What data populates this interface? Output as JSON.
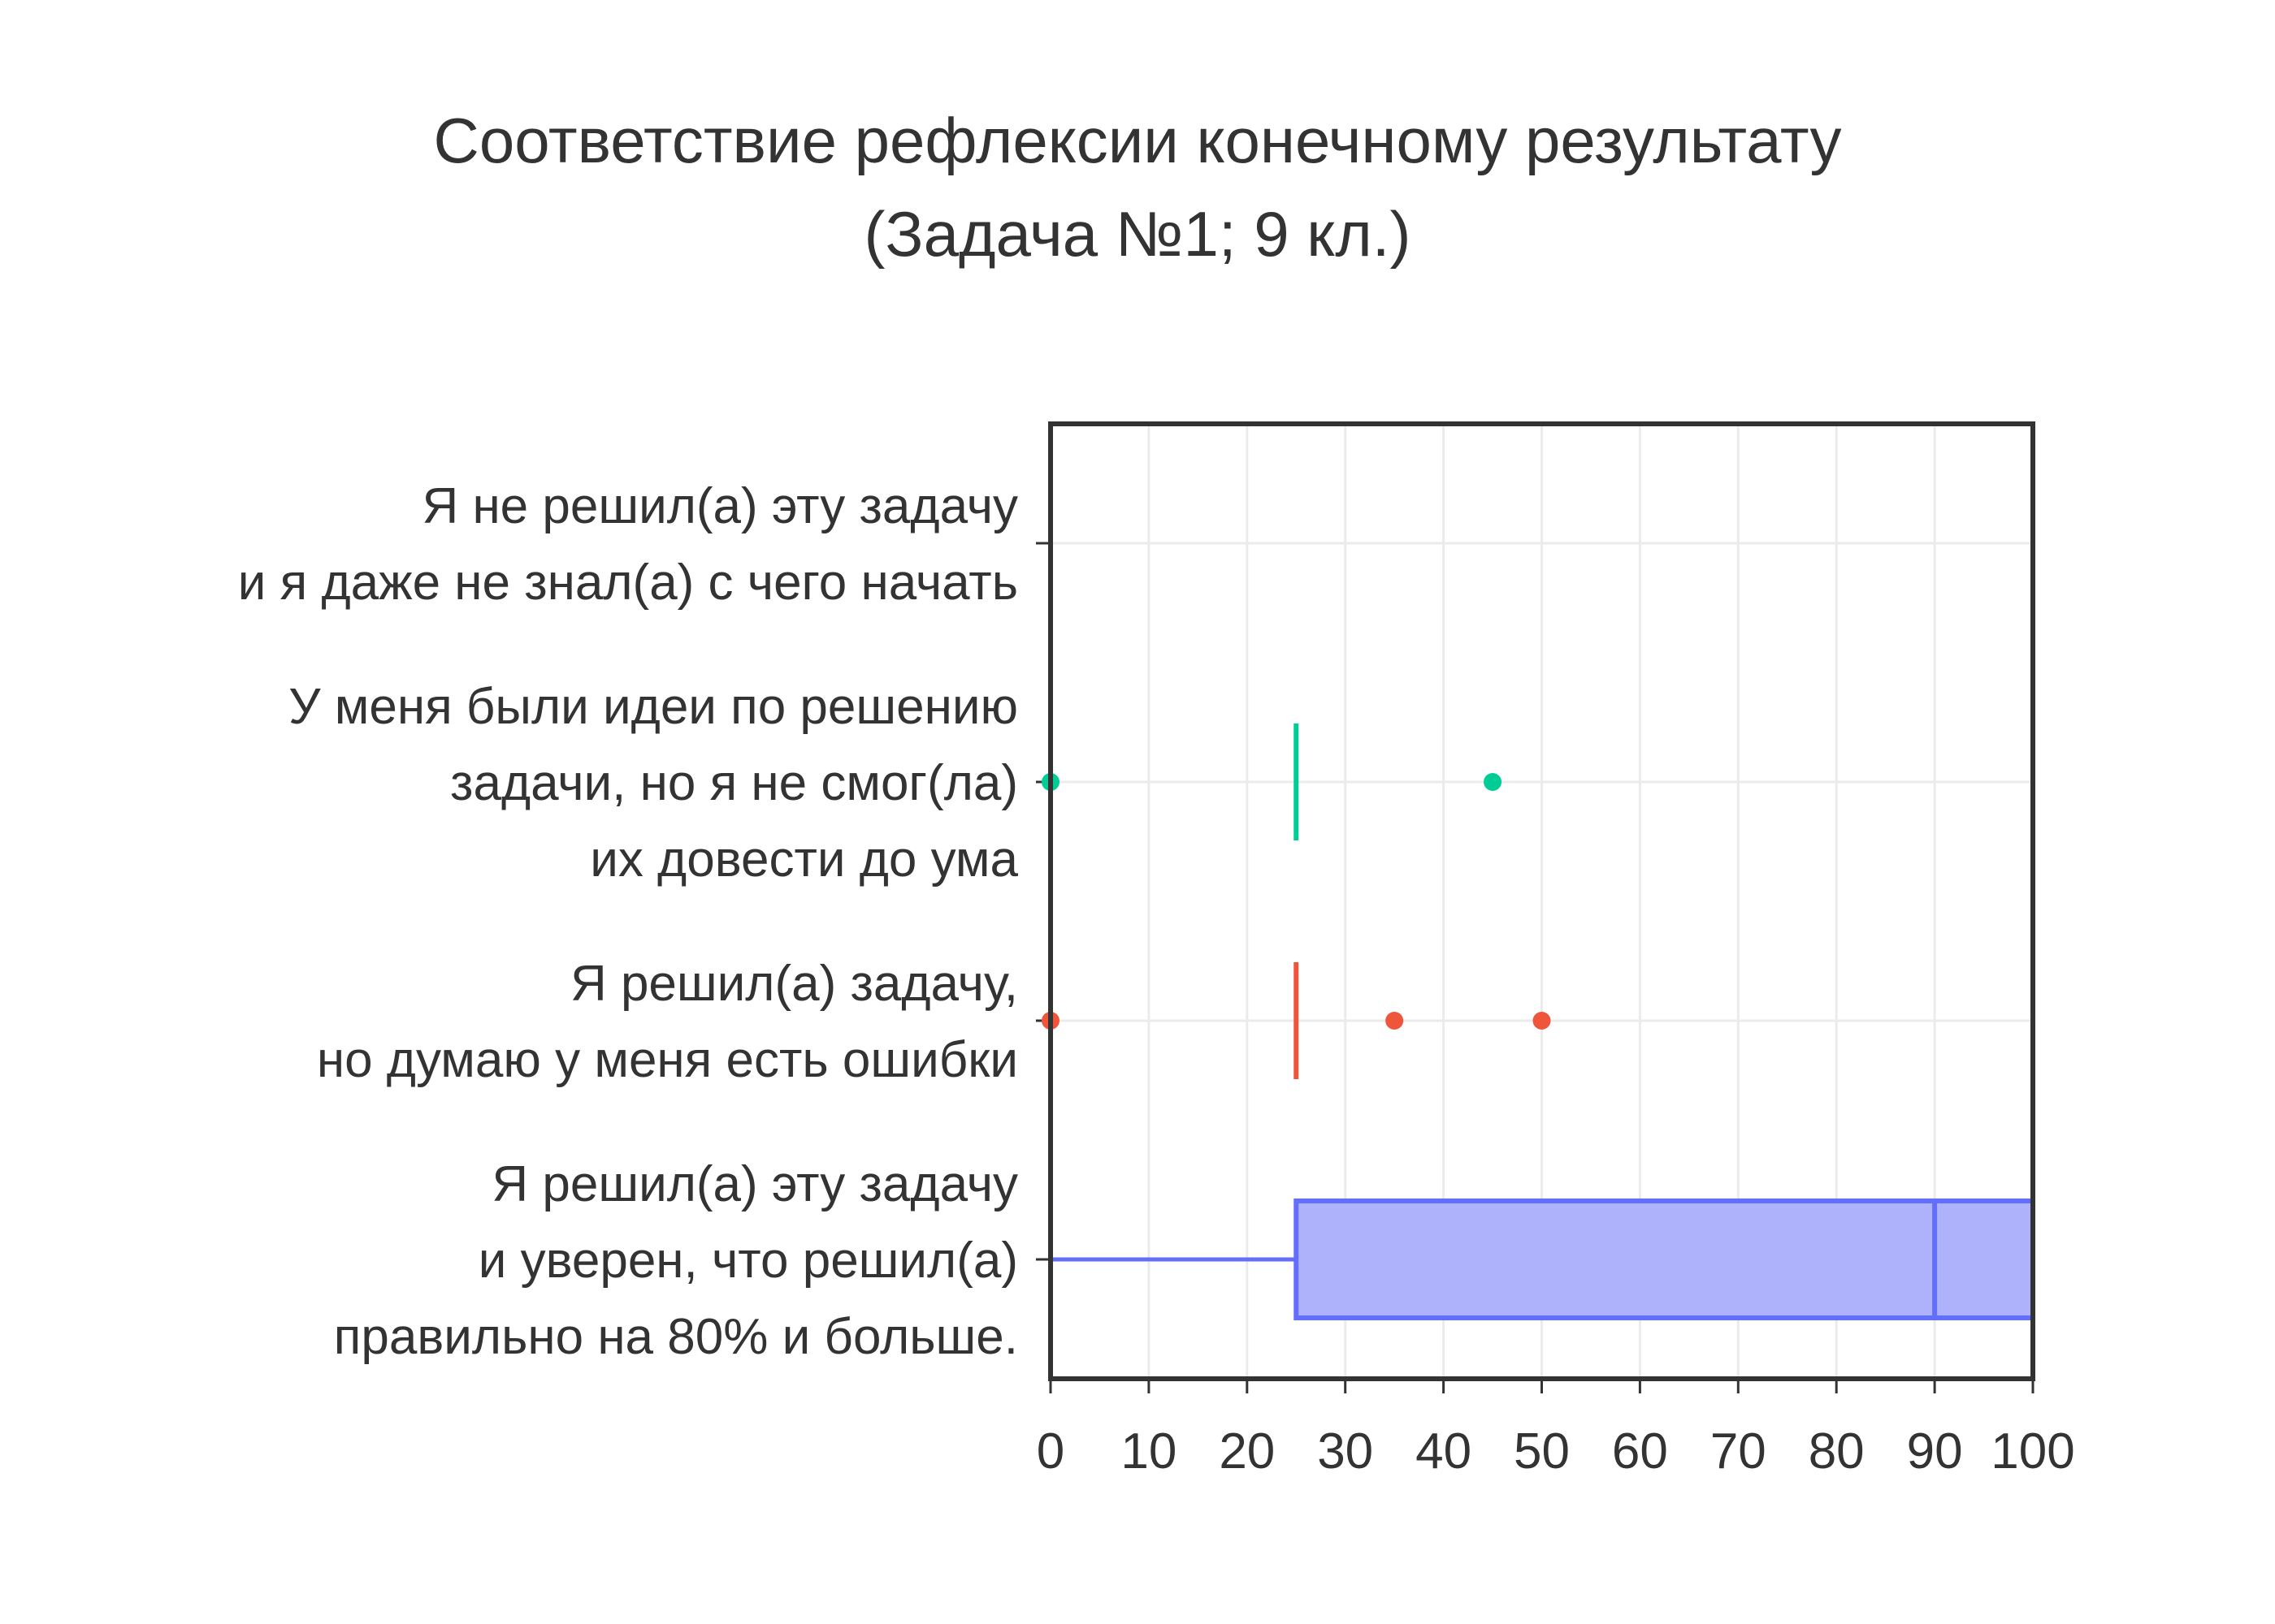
{
  "chart_data": {
    "type": "box",
    "orientation": "horizontal",
    "title": [
      "Соответствие рефлексии конечному результату",
      "(Задача №1; 9 кл.)"
    ],
    "xlim": [
      0,
      100
    ],
    "xticks": [
      0,
      10,
      20,
      30,
      40,
      50,
      60,
      70,
      80,
      90,
      100
    ],
    "grid": true,
    "legend": "none",
    "categories": [
      {
        "label": [
          "Я не решил(а) эту задачу",
          "и я даже не знал(а) с чего начать"
        ],
        "color": "#ab63fa",
        "box": {
          "min": 0,
          "q1": 0,
          "median": 0,
          "q3": 0,
          "max": 0
        },
        "outliers": []
      },
      {
        "label": [
          "У меня были идеи по решению",
          "задачи, но я не смог(ла)",
          "их довести до ума"
        ],
        "color": "#00cc96",
        "box": {
          "min": 25,
          "q1": 25,
          "median": 25,
          "q3": 25,
          "max": 25
        },
        "outliers": [
          0,
          45
        ]
      },
      {
        "label": [
          "Я решил(а) задачу,",
          "но думаю у меня есть ошибки"
        ],
        "color": "#ef553b",
        "box": {
          "min": 25,
          "q1": 25,
          "median": 25,
          "q3": 25,
          "max": 25
        },
        "outliers": [
          0,
          35,
          50
        ]
      },
      {
        "label": [
          "Я решил(а) эту задачу",
          "и уверен, что решил(а)",
          "правильно на 80% и больше."
        ],
        "color": "#636efa",
        "fill": "#adb2fb",
        "box": {
          "min": 0,
          "q1": 25,
          "median": 90,
          "q3": 100,
          "max": 100
        },
        "outliers": []
      }
    ]
  }
}
